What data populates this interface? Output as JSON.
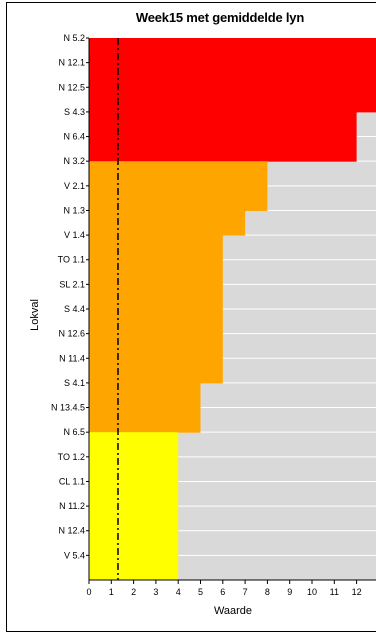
{
  "chart_data": {
    "type": "bar",
    "orientation": "horizontal",
    "title": "Week15 met gemiddelde lyn",
    "xlabel": "Waarde",
    "ylabel": "Lokval",
    "xlim": [
      0,
      13
    ],
    "x_ticks": [
      "0",
      "1",
      "2",
      "3",
      "4",
      "5",
      "6",
      "7",
      "8",
      "9",
      "10",
      "11",
      "12"
    ],
    "mean_line": 1.3,
    "grid": true,
    "background_bar_color": "#d9d9d9",
    "mean_line_color": "#000000",
    "categories": [
      "N 5.2",
      "N 12.1",
      "N 12.5",
      "S 4.3",
      "N 6.4",
      "N 3.2",
      "V 2.1",
      "N 1.3",
      "V 1.4",
      "TO 1.1",
      "SL 2.1",
      "S 4.4",
      "N 12.6",
      "N 11.4",
      "S 4.1",
      "N 13.4.5",
      "N 6.5",
      "TO 1.2",
      "CL 1.1",
      "N 11.2",
      "N 12.4",
      "V 5.4"
    ],
    "values": [
      13,
      13,
      13,
      12,
      12,
      8,
      8,
      7,
      6,
      6,
      6,
      6,
      6,
      6,
      5,
      5,
      4,
      4,
      4,
      4,
      4,
      4
    ],
    "bands": [
      {
        "color": "#ff0000",
        "count": 5
      },
      {
        "color": "#ffa500",
        "count": 11
      },
      {
        "color": "#ffff00",
        "count": 6
      }
    ]
  }
}
